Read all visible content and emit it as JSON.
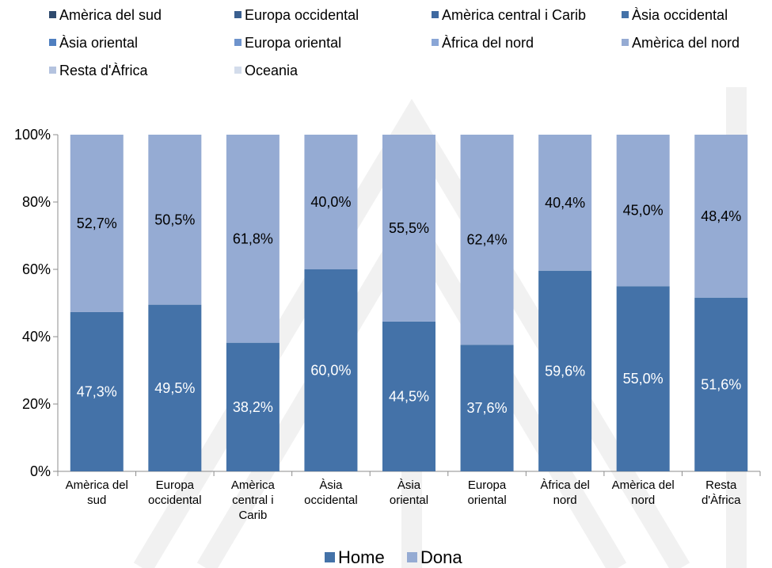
{
  "colors": {
    "home": "#4472A8",
    "dona": "#95ABD3",
    "axis": "#8C8C8C",
    "home_label": "#ffffff",
    "dona_label": "#000000"
  },
  "top_legend": [
    {
      "label": "Amèrica del sud",
      "color": "#2F4A6E"
    },
    {
      "label": "Europa occidental",
      "color": "#3A5F8F"
    },
    {
      "label": "Amèrica central i Carib",
      "color": "#3F69A0"
    },
    {
      "label": "Àsia occidental",
      "color": "#4472A8"
    },
    {
      "label": "Àsia oriental",
      "color": "#4F7FC0"
    },
    {
      "label": "Europa oriental",
      "color": "#6E93CC"
    },
    {
      "label": "Àfrica del nord",
      "color": "#8AA6D6"
    },
    {
      "label": "Amèrica del nord",
      "color": "#95ABD3"
    },
    {
      "label": "Resta d'Àfrica",
      "color": "#B4C3DF"
    },
    {
      "label": "Oceania",
      "color": "#D3DCEB"
    }
  ],
  "chart_data": {
    "type": "bar",
    "stacked": true,
    "percent_axis": true,
    "title": "",
    "xlabel": "",
    "ylabel": "",
    "ylim": [
      0,
      100
    ],
    "y_ticks": [
      "0%",
      "20%",
      "40%",
      "60%",
      "80%",
      "100%"
    ],
    "categories": [
      [
        "Amèrica del",
        "sud"
      ],
      [
        "Europa",
        "occidental"
      ],
      [
        "Amèrica",
        "central i",
        "Carib"
      ],
      [
        "Àsia",
        "occidental"
      ],
      [
        "Àsia",
        "oriental"
      ],
      [
        "Europa",
        "oriental"
      ],
      [
        "Àfrica del",
        "nord"
      ],
      [
        "Amèrica del",
        "nord"
      ],
      [
        "Resta",
        "d'Àfrica"
      ]
    ],
    "series": [
      {
        "name": "Home",
        "values": [
          47.3,
          49.5,
          38.2,
          60.0,
          44.5,
          37.6,
          59.6,
          55.0,
          51.6
        ],
        "labels": [
          "47,3%",
          "49,5%",
          "38,2%",
          "60,0%",
          "44,5%",
          "37,6%",
          "59,6%",
          "55,0%",
          "51,6%"
        ]
      },
      {
        "name": "Dona",
        "values": [
          52.7,
          50.5,
          61.8,
          40.0,
          55.5,
          62.4,
          40.4,
          45.0,
          48.4
        ],
        "labels": [
          "52,7%",
          "50,5%",
          "61,8%",
          "40,0%",
          "55,5%",
          "62,4%",
          "40,4%",
          "45,0%",
          "48,4%"
        ]
      }
    ],
    "legend_position": "bottom"
  }
}
